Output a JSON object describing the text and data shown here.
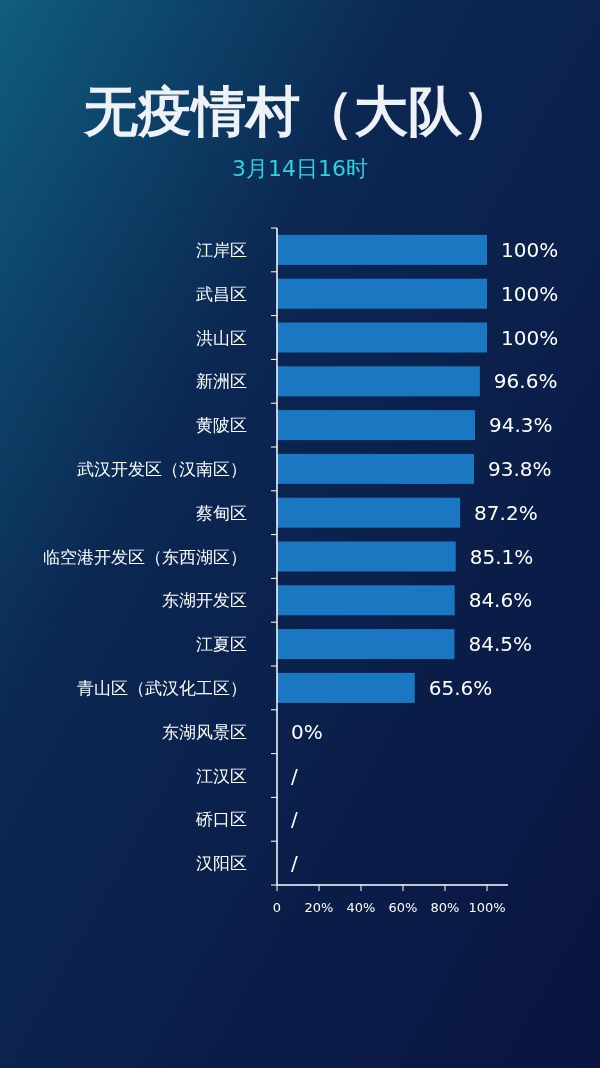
{
  "chart_data": {
    "type": "bar",
    "orientation": "horizontal",
    "title": "无疫情村（大队）",
    "subtitle": "3月14日16时",
    "categories": [
      "江岸区",
      "武昌区",
      "洪山区",
      "新洲区",
      "黄陂区",
      "武汉开发区（汉南区）",
      "蔡甸区",
      "临空港开发区（东西湖区）",
      "东湖开发区",
      "江夏区",
      "青山区（武汉化工区）",
      "东湖风景区",
      "江汉区",
      "硚口区",
      "汉阳区"
    ],
    "values": [
      100,
      100,
      100,
      96.6,
      94.3,
      93.8,
      87.2,
      85.1,
      84.6,
      84.5,
      65.6,
      0,
      null,
      null,
      null
    ],
    "value_labels": [
      "100%",
      "100%",
      "100%",
      "96.6%",
      "94.3%",
      "93.8%",
      "87.2%",
      "85.1%",
      "84.6%",
      "84.5%",
      "65.6%",
      "0%",
      "/",
      "/",
      "/"
    ],
    "color": "#1a78c2",
    "xlim": [
      0,
      110
    ],
    "xticks": [
      0,
      {
        "value": 20,
        "label": "20%"
      },
      {
        "value": 40,
        "label": "40%"
      },
      {
        "value": 60,
        "label": "60%"
      },
      {
        "value": 80,
        "label": "80%"
      },
      {
        "value": 100,
        "label": "100%"
      }
    ],
    "grid": false
  }
}
